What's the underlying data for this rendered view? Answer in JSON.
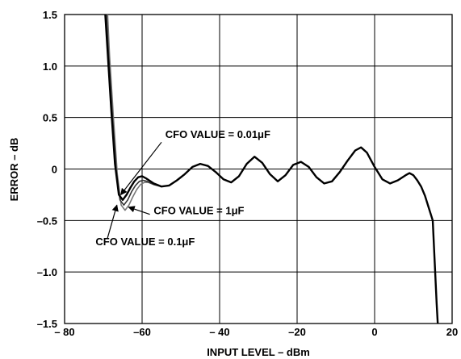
{
  "chart_data": {
    "type": "line",
    "xlabel": "INPUT LEVEL – dBm",
    "ylabel": "ERROR – dB",
    "xlim": [
      -80,
      20
    ],
    "ylim": [
      -1.5,
      1.5
    ],
    "grid": true,
    "x_ticks": [
      -80,
      -60,
      -40,
      -20,
      0,
      20
    ],
    "y_ticks": [
      -1.5,
      -1.0,
      -0.5,
      0,
      0.5,
      1.0,
      1.5
    ],
    "x_tick_labels": [
      "– 80",
      "–60",
      "– 40",
      "–20",
      "0",
      "20"
    ],
    "y_tick_labels": [
      "–1.5",
      "–1.0",
      "–0.5",
      "0",
      "0.5",
      "1.0",
      "1.5"
    ],
    "series": [
      {
        "color": "#000000",
        "points": [
          [
            -69.5,
            1.5
          ],
          [
            -69,
            1.2
          ],
          [
            -68,
            0.6
          ],
          [
            -67,
            0.05
          ],
          [
            -66,
            -0.25
          ],
          [
            -65,
            -0.3
          ],
          [
            -64,
            -0.25
          ],
          [
            -63,
            -0.18
          ],
          [
            -62,
            -0.12
          ],
          [
            -61,
            -0.08
          ],
          [
            -60,
            -0.07
          ],
          [
            -59,
            -0.09
          ],
          [
            -57,
            -0.14
          ],
          [
            -55,
            -0.17
          ],
          [
            -53,
            -0.16
          ],
          [
            -51,
            -0.11
          ],
          [
            -49,
            -0.05
          ],
          [
            -47,
            0.02
          ],
          [
            -45,
            0.05
          ],
          [
            -43,
            0.03
          ],
          [
            -41,
            -0.03
          ],
          [
            -39,
            -0.1
          ],
          [
            -37,
            -0.13
          ],
          [
            -35,
            -0.07
          ],
          [
            -33,
            0.05
          ],
          [
            -31,
            0.12
          ],
          [
            -29,
            0.06
          ],
          [
            -27,
            -0.05
          ],
          [
            -25,
            -0.12
          ],
          [
            -23,
            -0.06
          ],
          [
            -21,
            0.04
          ],
          [
            -19,
            0.07
          ],
          [
            -17,
            0.02
          ],
          [
            -15,
            -0.08
          ],
          [
            -13,
            -0.14
          ],
          [
            -11,
            -0.12
          ],
          [
            -9,
            -0.03
          ],
          [
            -7,
            0.08
          ],
          [
            -5,
            0.18
          ],
          [
            -3.5,
            0.21
          ],
          [
            -2,
            0.16
          ],
          [
            0,
            0.02
          ],
          [
            2,
            -0.1
          ],
          [
            4,
            -0.14
          ],
          [
            6,
            -0.11
          ],
          [
            8,
            -0.06
          ],
          [
            9,
            -0.04
          ],
          [
            10,
            -0.06
          ],
          [
            11,
            -0.11
          ],
          [
            12,
            -0.17
          ],
          [
            13,
            -0.26
          ],
          [
            14,
            -0.38
          ],
          [
            15,
            -0.5
          ],
          [
            15.5,
            -0.9
          ],
          [
            16,
            -1.3
          ],
          [
            16.3,
            -1.5
          ]
        ]
      },
      {
        "color": "#333333",
        "points": [
          [
            -69.2,
            1.5
          ],
          [
            -68.7,
            1.15
          ],
          [
            -67.7,
            0.55
          ],
          [
            -66.7,
            0.0
          ],
          [
            -65.7,
            -0.3
          ],
          [
            -64.7,
            -0.35
          ],
          [
            -63.7,
            -0.3
          ],
          [
            -62.7,
            -0.22
          ],
          [
            -61.7,
            -0.16
          ],
          [
            -60.7,
            -0.12
          ],
          [
            -59.7,
            -0.11
          ],
          [
            -58.7,
            -0.12
          ],
          [
            -57,
            -0.15
          ],
          [
            -55,
            -0.17
          ]
        ]
      },
      {
        "color": "#777777",
        "points": [
          [
            -68.9,
            1.5
          ],
          [
            -68.4,
            1.1
          ],
          [
            -67.4,
            0.5
          ],
          [
            -66.4,
            -0.05
          ],
          [
            -65.4,
            -0.35
          ],
          [
            -64.4,
            -0.4
          ],
          [
            -63.4,
            -0.35
          ],
          [
            -62.4,
            -0.27
          ],
          [
            -61.4,
            -0.2
          ],
          [
            -60.4,
            -0.15
          ],
          [
            -59.4,
            -0.13
          ],
          [
            -58.4,
            -0.13
          ],
          [
            -57,
            -0.15
          ],
          [
            -55,
            -0.17
          ]
        ]
      }
    ],
    "annotations": [
      {
        "text": "CFO VALUE = 0.01μF",
        "anchor": [
          -54,
          0.3
        ],
        "arrow_to": [
          -65.5,
          -0.25
        ]
      },
      {
        "text": "CFO VALUE = 1μF",
        "anchor": [
          -59,
          -0.44
        ],
        "arrow_to": [
          -63.5,
          -0.37
        ]
      },
      {
        "text": "CFO VALUE = 0.1μF",
        "anchor": [
          -71,
          -0.74
        ],
        "arrow_to": [
          -66.5,
          -0.35
        ]
      }
    ]
  }
}
